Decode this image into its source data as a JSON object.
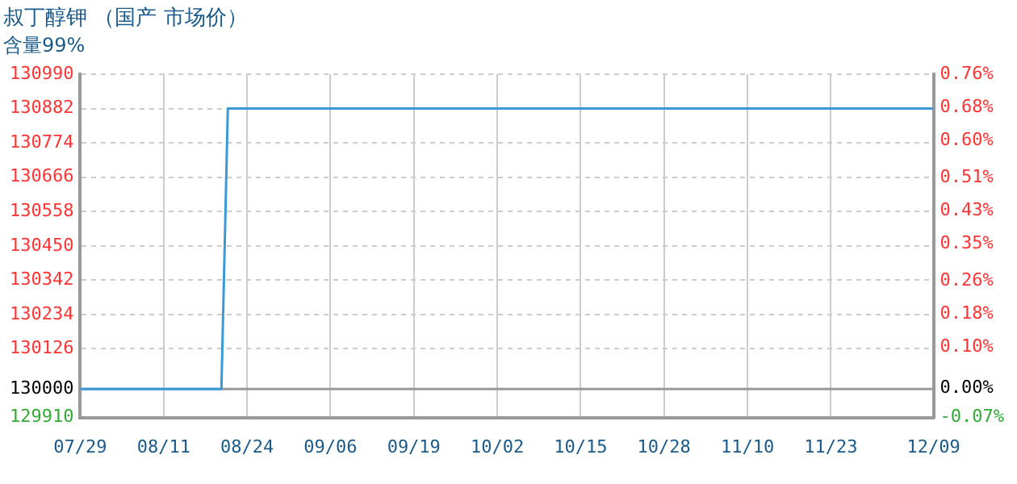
{
  "chart_data": {
    "type": "line",
    "title": "叔丁醇钾 （国产 市场价）",
    "subtitle": "含量99%",
    "x": [
      "--07-29",
      "--08-20",
      "--08-21",
      "--12-09"
    ],
    "series": [
      {
        "color": "#3a9ad9",
        "values": [
          130000,
          130000,
          130882,
          130882
        ]
      }
    ],
    "xlim": [
      "--07-29",
      "--12-09"
    ],
    "xticks": [
      {
        "value": "--07-29",
        "label": "07/29"
      },
      {
        "value": "--08-11",
        "label": "08/11"
      },
      {
        "value": "--08-24",
        "label": "08/24"
      },
      {
        "value": "--09-06",
        "label": "09/06"
      },
      {
        "value": "--09-19",
        "label": "09/19"
      },
      {
        "value": "--10-02",
        "label": "10/02"
      },
      {
        "value": "--10-15",
        "label": "10/15"
      },
      {
        "value": "--10-28",
        "label": "10/28"
      },
      {
        "value": "--11-10",
        "label": "11/10"
      },
      {
        "value": "--11-23",
        "label": "11/23"
      },
      {
        "value": "--12-09",
        "label": "12/09"
      }
    ],
    "ylim": [
      129910,
      130990
    ],
    "yticks": [
      129910,
      130000,
      130126,
      130234,
      130342,
      130450,
      130558,
      130666,
      130774,
      130882,
      130990
    ],
    "y2lim": [
      -0.07,
      0.76
    ],
    "y2ticks": [
      {
        "value": -0.07,
        "label": "-0.07%"
      },
      {
        "value": 0,
        "label": "0.00%"
      },
      {
        "value": 0.1,
        "label": "0.10%"
      },
      {
        "value": 0.18,
        "label": "0.18%"
      },
      {
        "value": 0.26,
        "label": "0.26%"
      },
      {
        "value": 0.35,
        "label": "0.35%"
      },
      {
        "value": 0.43,
        "label": "0.43%"
      },
      {
        "value": 0.51,
        "label": "0.51%"
      },
      {
        "value": 0.6,
        "label": "0.60%"
      },
      {
        "value": 0.68,
        "label": "0.68%"
      },
      {
        "value": 0.76,
        "label": "0.76%"
      }
    ],
    "ref_lines": [
      {
        "axis": "y",
        "value": 130000,
        "color": "#999999"
      }
    ],
    "grid": true
  }
}
